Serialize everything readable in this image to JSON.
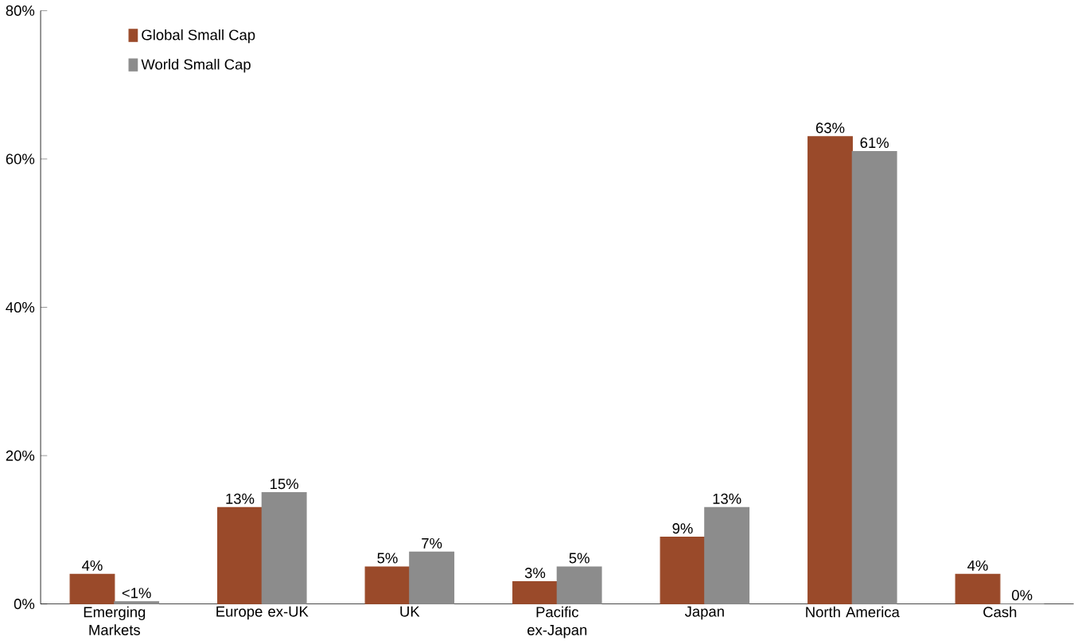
{
  "chart_data": {
    "type": "bar",
    "categories": [
      "Emerging Markets",
      "Europe ex-UK",
      "UK",
      "Pacific ex-Japan",
      "Japan",
      "North  America",
      "Cash"
    ],
    "series": [
      {
        "name": "Global Small Cap",
        "color": "#9a4a2a",
        "values": [
          4,
          13,
          5,
          3,
          9,
          63,
          4
        ],
        "value_labels": [
          "4%",
          "13%",
          "5%",
          "3%",
          "9%",
          "63%",
          "4%"
        ]
      },
      {
        "name": "World Small Cap",
        "color": "#8c8c8c",
        "values": [
          0.3,
          15,
          7,
          5,
          13,
          61,
          0
        ],
        "value_labels": [
          "<1%",
          "15%",
          "7%",
          "5%",
          "13%",
          "61%",
          "0%"
        ]
      }
    ],
    "ylim": [
      0,
      80
    ],
    "yticks": [
      {
        "value": 0,
        "label": "0%"
      },
      {
        "value": 20,
        "label": "20%"
      },
      {
        "value": 40,
        "label": "40%"
      },
      {
        "value": 60,
        "label": "60%"
      },
      {
        "value": 80,
        "label": "80%"
      }
    ],
    "legend": "top left",
    "grid": false
  }
}
